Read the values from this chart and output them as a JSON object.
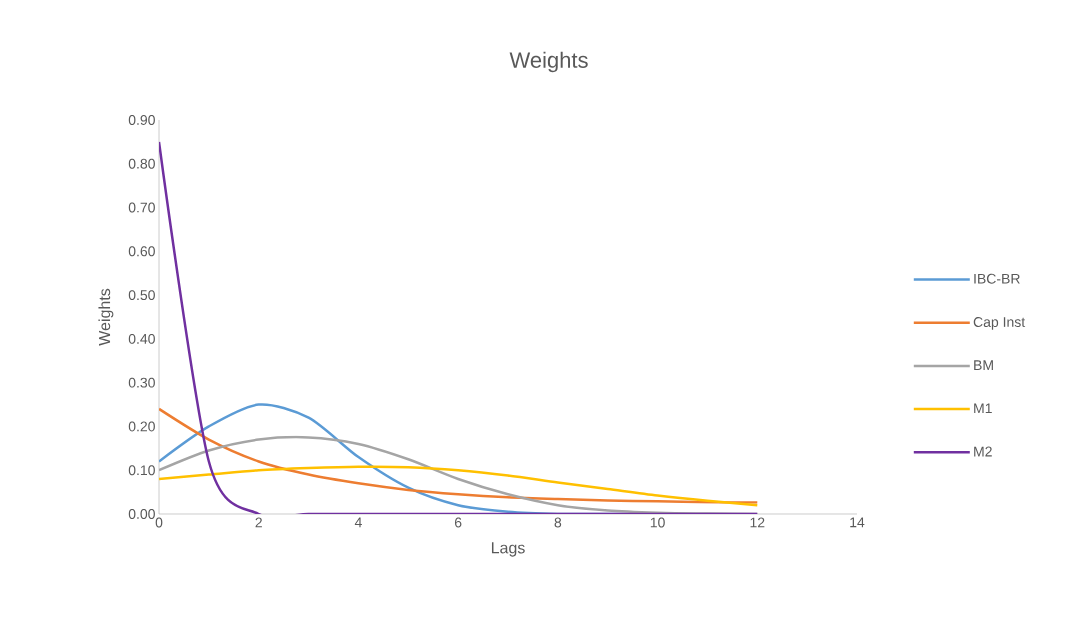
{
  "chart_data": {
    "type": "line",
    "title": "Weights",
    "xlabel": "Lags",
    "ylabel": "Weights",
    "x": [
      0,
      1,
      2,
      3,
      4,
      5,
      6,
      7,
      8,
      9,
      10,
      11,
      12
    ],
    "series": [
      {
        "name": "IBC-BR",
        "color": "#5b9bd5",
        "values": [
          0.12,
          0.2,
          0.25,
          0.22,
          0.13,
          0.06,
          0.02,
          0.005,
          0,
          0,
          0,
          null,
          null
        ]
      },
      {
        "name": "Cap Inst",
        "color": "#ed7d31",
        "values": [
          0.24,
          0.17,
          0.12,
          0.09,
          0.07,
          0.055,
          0.045,
          0.038,
          0.034,
          0.031,
          0.029,
          0.027,
          0.026
        ]
      },
      {
        "name": "BM",
        "color": "#a5a5a5",
        "values": [
          0.1,
          0.145,
          0.17,
          0.175,
          0.16,
          0.125,
          0.08,
          0.045,
          0.02,
          0.008,
          0.003,
          0.001,
          0
        ]
      },
      {
        "name": "M1",
        "color": "#ffc000",
        "values": [
          0.08,
          0.09,
          0.1,
          0.105,
          0.108,
          0.107,
          0.1,
          0.088,
          0.072,
          0.057,
          0.042,
          0.03,
          0.02
        ]
      },
      {
        "name": "M2",
        "color": "#7030a0",
        "values": [
          0.85,
          0.12,
          0,
          0,
          0,
          0,
          0,
          0,
          0,
          0,
          0,
          0,
          0
        ]
      }
    ],
    "xlim": [
      0,
      14
    ],
    "xticks": [
      0,
      2,
      4,
      6,
      8,
      10,
      12,
      14
    ],
    "ylim": [
      0,
      0.9
    ],
    "yticks": [
      {
        "value": 0,
        "label": "0.00"
      },
      {
        "value": 0.1,
        "label": "0.10"
      },
      {
        "value": 0.2,
        "label": "0.20"
      },
      {
        "value": 0.3,
        "label": "0.30"
      },
      {
        "value": 0.4,
        "label": "0.40"
      },
      {
        "value": 0.5,
        "label": "0.50"
      },
      {
        "value": 0.6,
        "label": "0.60"
      },
      {
        "value": 0.7,
        "label": "0.70"
      },
      {
        "value": 0.8,
        "label": "0.80"
      },
      {
        "value": 0.9,
        "label": "0.90"
      }
    ],
    "legend": "right",
    "marker": "none",
    "line_style": "solid",
    "grid": false
  }
}
